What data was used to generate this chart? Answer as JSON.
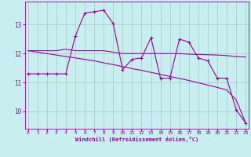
{
  "x": [
    0,
    1,
    2,
    3,
    4,
    5,
    6,
    7,
    8,
    9,
    10,
    11,
    12,
    13,
    14,
    15,
    16,
    17,
    18,
    19,
    20,
    21,
    22,
    23
  ],
  "line1_marked": [
    11.3,
    11.3,
    11.3,
    11.3,
    11.3,
    12.6,
    13.4,
    13.45,
    13.5,
    13.05,
    11.45,
    11.8,
    11.85,
    12.55,
    11.15,
    11.15,
    12.5,
    12.4,
    11.85,
    11.75,
    11.15,
    11.15,
    10.05,
    9.6
  ],
  "line2_flat": [
    12.1,
    12.1,
    12.1,
    12.1,
    12.15,
    12.1,
    12.1,
    12.1,
    12.1,
    12.05,
    12.0,
    12.0,
    12.0,
    12.0,
    12.0,
    12.0,
    12.0,
    11.98,
    11.97,
    11.96,
    11.95,
    11.93,
    11.9,
    11.88
  ],
  "line3_decline": [
    12.1,
    12.05,
    12.0,
    11.95,
    11.9,
    11.85,
    11.8,
    11.75,
    11.68,
    11.62,
    11.55,
    11.48,
    11.42,
    11.35,
    11.28,
    11.21,
    11.14,
    11.07,
    10.99,
    10.91,
    10.83,
    10.74,
    10.4,
    9.6
  ],
  "line_color": "#990099",
  "bg_color": "#c8eef0",
  "grid_color": "#a0c8c0",
  "xlabel": "Windchill (Refroidissement éolien,°C)",
  "xticks": [
    0,
    1,
    2,
    3,
    4,
    5,
    6,
    7,
    8,
    9,
    10,
    11,
    12,
    13,
    14,
    15,
    16,
    17,
    18,
    19,
    20,
    21,
    22,
    23
  ],
  "yticks": [
    10,
    11,
    12,
    13
  ],
  "ylim": [
    9.4,
    13.8
  ],
  "xlim": [
    -0.3,
    23.3
  ]
}
